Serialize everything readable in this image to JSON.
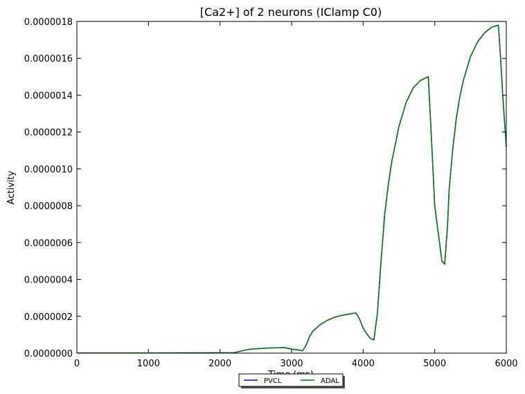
{
  "chart_data": {
    "type": "line",
    "title": "[Ca2+] of 2 neurons (IClamp C0)",
    "xlabel": "Time (ms)",
    "ylabel": "Activity",
    "xlim": [
      0,
      6000
    ],
    "ylim": [
      0,
      1.8e-06
    ],
    "xticks": [
      "0",
      "1000",
      "2000",
      "3000",
      "4000",
      "5000",
      "6000"
    ],
    "yticks": [
      "0.0000000",
      "0.0000002",
      "0.0000004",
      "0.0000006",
      "0.0000008",
      "0.0000010",
      "0.0000012",
      "0.0000014",
      "0.0000016",
      "0.0000018"
    ],
    "grid": false,
    "legend_position": "bottom-center",
    "series": [
      {
        "name": "PVCL",
        "color": "#0000ff",
        "x": [
          0,
          500,
          1000,
          1500,
          2000,
          2200,
          2300,
          2400,
          2500,
          2600,
          2700,
          2800,
          2900,
          3000,
          3100,
          3150,
          3200,
          3250,
          3300,
          3400,
          3500,
          3600,
          3700,
          3800,
          3900,
          3950,
          4000,
          4050,
          4100,
          4150,
          4200,
          4250,
          4300,
          4350,
          4400,
          4500,
          4600,
          4700,
          4800,
          4910,
          4950,
          5000,
          5050,
          5100,
          5140,
          5180,
          5200,
          5250,
          5300,
          5350,
          5400,
          5500,
          5600,
          5700,
          5800,
          5890,
          5920,
          5950,
          6000
        ],
        "values": [
          1e-09,
          1e-09,
          1e-09,
          1.5e-09,
          2e-09,
          2.5e-09,
          1.2e-08,
          2e-08,
          2.4e-08,
          2.6e-08,
          2.8e-08,
          2.9e-08,
          3e-08,
          2.2e-08,
          1.7e-08,
          1.2e-08,
          4e-08,
          9e-08,
          1.2e-07,
          1.55e-07,
          1.78e-07,
          1.95e-07,
          2.05e-07,
          2.12e-07,
          2.18e-07,
          1.85e-07,
          1.35e-07,
          1.05e-07,
          8e-08,
          7.2e-08,
          2.2e-07,
          5e-07,
          7.5e-07,
          9.1e-07,
          1.04e-06,
          1.23e-06,
          1.36e-06,
          1.44e-06,
          1.48e-06,
          1.5e-06,
          1.2e-06,
          8e-07,
          6.5e-07,
          5e-07,
          4.83e-07,
          7e-07,
          8.8e-07,
          1.1e-06,
          1.27e-06,
          1.39e-06,
          1.48e-06,
          1.61e-06,
          1.69e-06,
          1.74e-06,
          1.77e-06,
          1.78e-06,
          1.6e-06,
          1.4e-06,
          1.12e-06
        ]
      },
      {
        "name": "ADAL",
        "color": "#007f00",
        "x": [
          0,
          500,
          1000,
          1500,
          2000,
          2200,
          2300,
          2400,
          2500,
          2600,
          2700,
          2800,
          2900,
          3000,
          3100,
          3150,
          3200,
          3250,
          3300,
          3400,
          3500,
          3600,
          3700,
          3800,
          3900,
          3950,
          4000,
          4050,
          4100,
          4150,
          4200,
          4250,
          4300,
          4350,
          4400,
          4500,
          4600,
          4700,
          4800,
          4910,
          4950,
          5000,
          5050,
          5100,
          5140,
          5180,
          5200,
          5250,
          5300,
          5350,
          5400,
          5500,
          5600,
          5700,
          5800,
          5890,
          5920,
          5950,
          6000
        ],
        "values": [
          1e-09,
          1e-09,
          1e-09,
          1.5e-09,
          2e-09,
          2.5e-09,
          1.2e-08,
          2e-08,
          2.4e-08,
          2.6e-08,
          2.8e-08,
          2.9e-08,
          3e-08,
          2.2e-08,
          1.7e-08,
          1.2e-08,
          4e-08,
          9e-08,
          1.2e-07,
          1.55e-07,
          1.78e-07,
          1.95e-07,
          2.05e-07,
          2.12e-07,
          2.18e-07,
          1.85e-07,
          1.35e-07,
          1.05e-07,
          8e-08,
          7.2e-08,
          2.2e-07,
          5e-07,
          7.5e-07,
          9.1e-07,
          1.04e-06,
          1.23e-06,
          1.36e-06,
          1.44e-06,
          1.48e-06,
          1.5e-06,
          1.2e-06,
          8e-07,
          6.5e-07,
          5e-07,
          4.83e-07,
          7e-07,
          8.8e-07,
          1.1e-06,
          1.27e-06,
          1.39e-06,
          1.48e-06,
          1.61e-06,
          1.69e-06,
          1.74e-06,
          1.77e-06,
          1.78e-06,
          1.6e-06,
          1.4e-06,
          1.12e-06
        ]
      }
    ]
  }
}
